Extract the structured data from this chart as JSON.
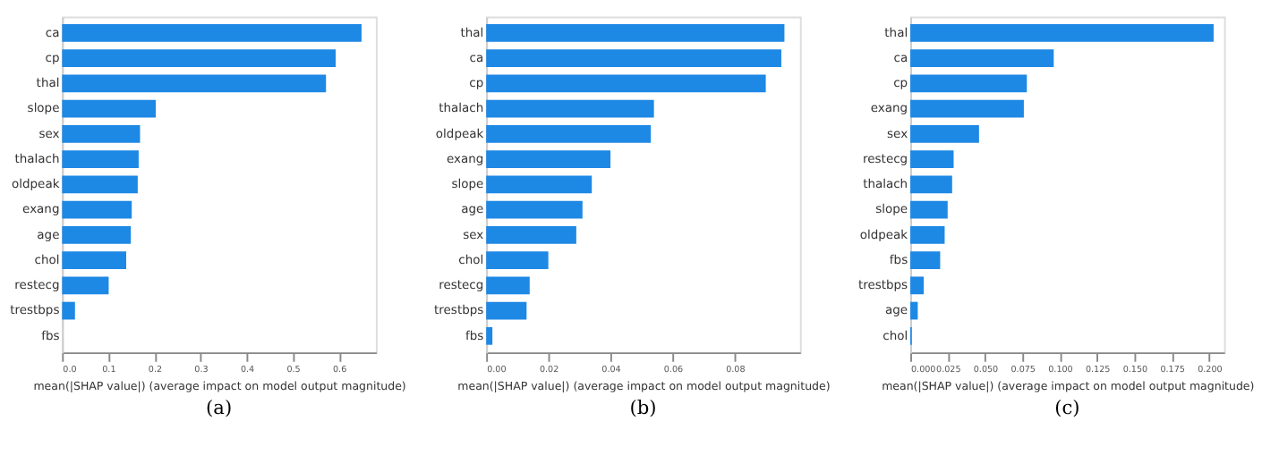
{
  "chart_data": [
    {
      "type": "bar",
      "orientation": "horizontal",
      "categories": [
        "ca",
        "cp",
        "thal",
        "slope",
        "sex",
        "thalach",
        "oldpeak",
        "exang",
        "age",
        "chol",
        "restecg",
        "trestbps",
        "fbs"
      ],
      "values": [
        0.649,
        0.593,
        0.572,
        0.203,
        0.169,
        0.166,
        0.164,
        0.151,
        0.149,
        0.139,
        0.101,
        0.028,
        0
      ],
      "color": "#1e88e5",
      "xlim": [
        0,
        0.68
      ],
      "xticks": [
        {
          "value": 0,
          "label": "0.0"
        },
        0.1,
        0.2,
        0.3,
        0.4,
        0.5,
        0.6
      ],
      "xlabel": "mean(|SHAP value|) (average impact on model output magnitude)",
      "annotations": [
        "(a)"
      ],
      "grid": false
    },
    {
      "type": "bar",
      "orientation": "horizontal",
      "categories": [
        "thal",
        "ca",
        "cp",
        "thalach",
        "oldpeak",
        "exang",
        "slope",
        "age",
        "sex",
        "chol",
        "restecg",
        "trestbps",
        "fbs"
      ],
      "values": [
        0.096,
        0.095,
        0.09,
        0.054,
        0.053,
        0.04,
        0.034,
        0.031,
        0.029,
        0.02,
        0.014,
        0.013,
        0.002
      ],
      "color": "#1e88e5",
      "xlim": [
        0,
        0.101
      ],
      "xticks": [
        {
          "value": 0,
          "label": "0.00"
        },
        0.02,
        0.04,
        0.06,
        0.08
      ],
      "xlabel": "mean(|SHAP value|) (average impact on model output magnitude)",
      "annotations": [
        "(b)"
      ],
      "grid": false
    },
    {
      "type": "bar",
      "orientation": "horizontal",
      "categories": [
        "thal",
        "ca",
        "cp",
        "exang",
        "sex",
        "restecg",
        "thalach",
        "slope",
        "oldpeak",
        "fbs",
        "trestbps",
        "age",
        "chol"
      ],
      "values": [
        0.203,
        0.096,
        0.078,
        0.076,
        0.046,
        0.029,
        0.028,
        0.025,
        0.023,
        0.02,
        0.009,
        0.005,
        0.001
      ],
      "color": "#1e88e5",
      "xlim": [
        0,
        0.21
      ],
      "xticks": [
        {
          "value": 0,
          "label": "0.000"
        },
        {
          "value": 0.025,
          "label": "0.025"
        },
        {
          "value": 0.05,
          "label": "0.050"
        },
        {
          "value": 0.075,
          "label": "0.075"
        },
        {
          "value": 0.1,
          "label": "0.100"
        },
        {
          "value": 0.125,
          "label": "0.125"
        },
        {
          "value": 0.15,
          "label": "0.150"
        },
        {
          "value": 0.175,
          "label": "0.175"
        },
        {
          "value": 0.2,
          "label": "0.200"
        }
      ],
      "xlabel": "mean(|SHAP value|) (average impact on model output magnitude)",
      "annotations": [
        "(c)"
      ],
      "grid": false
    }
  ]
}
